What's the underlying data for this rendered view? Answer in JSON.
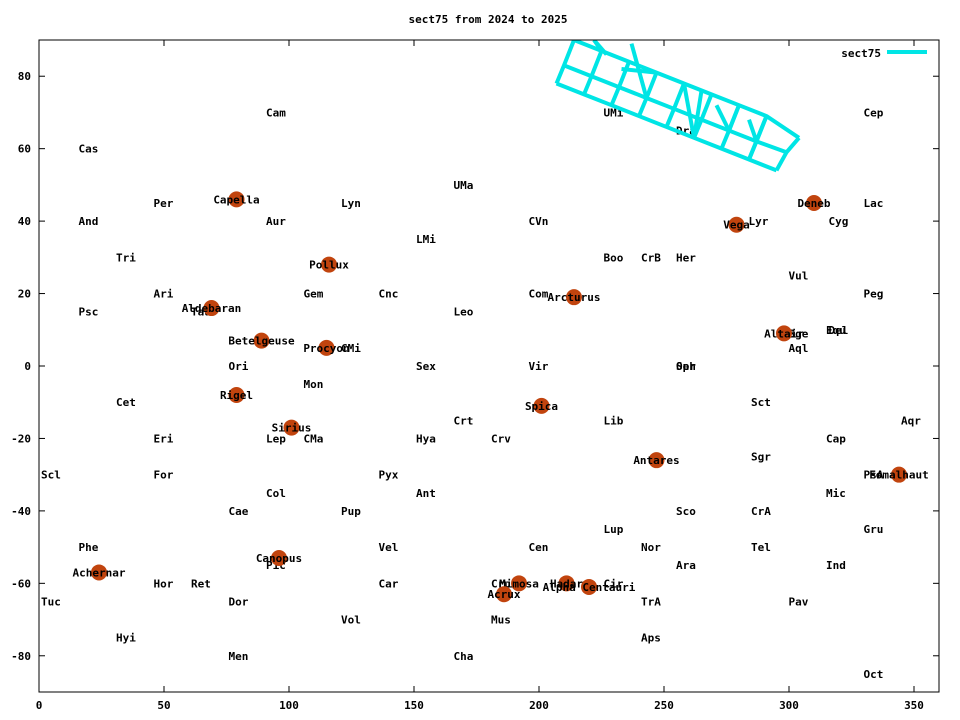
{
  "colors": {
    "series": "#00e5e5",
    "star": "#c1440e",
    "axis": "#000000",
    "background": "#ffffff"
  },
  "chart_data": {
    "type": "scatter",
    "title": "sect75 from 2024 to 2025",
    "xlabel": "",
    "ylabel": "",
    "xlim": [
      0,
      360
    ],
    "ylim": [
      -90,
      90
    ],
    "xticks": [
      0,
      50,
      100,
      150,
      200,
      250,
      300,
      350
    ],
    "yticks": [
      -80,
      -60,
      -40,
      -20,
      0,
      20,
      40,
      60,
      80
    ],
    "grid": false,
    "legend": {
      "position": "top-right",
      "entries": [
        "sect75"
      ]
    },
    "constellations": [
      {
        "name": "Cam",
        "x": 90,
        "y": 70
      },
      {
        "name": "Cas",
        "x": 15,
        "y": 60
      },
      {
        "name": "Cep",
        "x": 329,
        "y": 70
      },
      {
        "name": "UMa",
        "x": 165,
        "y": 50
      },
      {
        "name": "UMi",
        "x": 225,
        "y": 70
      },
      {
        "name": "Dra",
        "x": 254,
        "y": 65
      },
      {
        "name": "Per",
        "x": 45,
        "y": 45
      },
      {
        "name": "Lyn",
        "x": 120,
        "y": 45
      },
      {
        "name": "Lac",
        "x": 329,
        "y": 45
      },
      {
        "name": "And",
        "x": 15,
        "y": 40
      },
      {
        "name": "Aur",
        "x": 90,
        "y": 40
      },
      {
        "name": "CVn",
        "x": 195,
        "y": 40
      },
      {
        "name": "Lyr",
        "x": 283,
        "y": 40
      },
      {
        "name": "Cyg",
        "x": 315,
        "y": 40
      },
      {
        "name": "LMi",
        "x": 150,
        "y": 35
      },
      {
        "name": "Tri",
        "x": 30,
        "y": 30
      },
      {
        "name": "Boo",
        "x": 225,
        "y": 30
      },
      {
        "name": "CrB",
        "x": 240,
        "y": 30
      },
      {
        "name": "Her",
        "x": 254,
        "y": 30
      },
      {
        "name": "Vul",
        "x": 299,
        "y": 25
      },
      {
        "name": "Ari",
        "x": 45,
        "y": 20
      },
      {
        "name": "Gem",
        "x": 105,
        "y": 20
      },
      {
        "name": "Cnc",
        "x": 135,
        "y": 20
      },
      {
        "name": "Com",
        "x": 195,
        "y": 20
      },
      {
        "name": "Peg",
        "x": 329,
        "y": 20
      },
      {
        "name": "Psc",
        "x": 15,
        "y": 15
      },
      {
        "name": "Tau",
        "x": 60,
        "y": 15
      },
      {
        "name": "Leo",
        "x": 165,
        "y": 15
      },
      {
        "name": "Equ",
        "x": 314,
        "y": 10
      },
      {
        "name": "Del",
        "x": 315,
        "y": 10
      },
      {
        "name": "Sge",
        "x": 299,
        "y": 9
      },
      {
        "name": "Aql",
        "x": 299,
        "y": 5
      },
      {
        "name": "CMi",
        "x": 120,
        "y": 5
      },
      {
        "name": "Ori",
        "x": 75,
        "y": 0
      },
      {
        "name": "Sex",
        "x": 150,
        "y": 0
      },
      {
        "name": "Vir",
        "x": 195,
        "y": 0
      },
      {
        "name": "Oph",
        "x": 254,
        "y": 0
      },
      {
        "name": "Ser",
        "x": 254,
        "y": 0
      },
      {
        "name": "Mon",
        "x": 105,
        "y": -5
      },
      {
        "name": "Cet",
        "x": 30,
        "y": -10
      },
      {
        "name": "Sct",
        "x": 284,
        "y": -10
      },
      {
        "name": "Crt",
        "x": 165,
        "y": -15
      },
      {
        "name": "Lib",
        "x": 225,
        "y": -15
      },
      {
        "name": "Aqr",
        "x": 344,
        "y": -15
      },
      {
        "name": "Eri",
        "x": 45,
        "y": -20
      },
      {
        "name": "Lep",
        "x": 90,
        "y": -20
      },
      {
        "name": "CMa",
        "x": 105,
        "y": -20
      },
      {
        "name": "Hya",
        "x": 150,
        "y": -20
      },
      {
        "name": "Crv",
        "x": 180,
        "y": -20
      },
      {
        "name": "Cap",
        "x": 314,
        "y": -20
      },
      {
        "name": "Sgr",
        "x": 284,
        "y": -25
      },
      {
        "name": "Scl",
        "x": 0,
        "y": -30
      },
      {
        "name": "For",
        "x": 45,
        "y": -30
      },
      {
        "name": "Pyx",
        "x": 135,
        "y": -30
      },
      {
        "name": "PsA",
        "x": 329,
        "y": -30
      },
      {
        "name": "Col",
        "x": 90,
        "y": -35
      },
      {
        "name": "Ant",
        "x": 150,
        "y": -35
      },
      {
        "name": "Mic",
        "x": 314,
        "y": -35
      },
      {
        "name": "Cae",
        "x": 75,
        "y": -40
      },
      {
        "name": "Pup",
        "x": 120,
        "y": -40
      },
      {
        "name": "Sco",
        "x": 254,
        "y": -40
      },
      {
        "name": "CrA",
        "x": 284,
        "y": -40
      },
      {
        "name": "Gru",
        "x": 329,
        "y": -45
      },
      {
        "name": "Lup",
        "x": 225,
        "y": -45
      },
      {
        "name": "Phe",
        "x": 15,
        "y": -50
      },
      {
        "name": "Vel",
        "x": 135,
        "y": -50
      },
      {
        "name": "Cen",
        "x": 195,
        "y": -50
      },
      {
        "name": "Nor",
        "x": 240,
        "y": -50
      },
      {
        "name": "Tel",
        "x": 284,
        "y": -50
      },
      {
        "name": "Pic",
        "x": 90,
        "y": -55
      },
      {
        "name": "Ara",
        "x": 254,
        "y": -55
      },
      {
        "name": "Ind",
        "x": 314,
        "y": -55
      },
      {
        "name": "Hor",
        "x": 45,
        "y": -60
      },
      {
        "name": "Ret",
        "x": 60,
        "y": -60
      },
      {
        "name": "Car",
        "x": 135,
        "y": -60
      },
      {
        "name": "Cru",
        "x": 180,
        "y": -60
      },
      {
        "name": "Cir",
        "x": 225,
        "y": -60
      },
      {
        "name": "Tuc",
        "x": 0,
        "y": -65
      },
      {
        "name": "Dor",
        "x": 75,
        "y": -65
      },
      {
        "name": "TrA",
        "x": 240,
        "y": -65
      },
      {
        "name": "Pav",
        "x": 299,
        "y": -65
      },
      {
        "name": "Vol",
        "x": 120,
        "y": -70
      },
      {
        "name": "Mus",
        "x": 180,
        "y": -70
      },
      {
        "name": "Hyi",
        "x": 30,
        "y": -75
      },
      {
        "name": "Aps",
        "x": 240,
        "y": -75
      },
      {
        "name": "Men",
        "x": 75,
        "y": -80
      },
      {
        "name": "Cha",
        "x": 165,
        "y": -80
      },
      {
        "name": "Oct",
        "x": 329,
        "y": -85
      }
    ],
    "stars": [
      {
        "name": "Capella",
        "x": 79,
        "y": 46
      },
      {
        "name": "Deneb",
        "x": 310,
        "y": 45
      },
      {
        "name": "Vega",
        "x": 279,
        "y": 39
      },
      {
        "name": "Pollux",
        "x": 116,
        "y": 28
      },
      {
        "name": "Arcturus",
        "x": 214,
        "y": 19
      },
      {
        "name": "Aldebaran",
        "x": 69,
        "y": 16
      },
      {
        "name": "Altair",
        "x": 298,
        "y": 9
      },
      {
        "name": "Betelgeuse",
        "x": 89,
        "y": 7
      },
      {
        "name": "Procyon",
        "x": 115,
        "y": 5
      },
      {
        "name": "Rigel",
        "x": 79,
        "y": -8
      },
      {
        "name": "Spica",
        "x": 201,
        "y": -11
      },
      {
        "name": "Sirius",
        "x": 101,
        "y": -17
      },
      {
        "name": "Antares",
        "x": 247,
        "y": -26
      },
      {
        "name": "Fomalhaut",
        "x": 344,
        "y": -30
      },
      {
        "name": "Canopus",
        "x": 96,
        "y": -53
      },
      {
        "name": "Achernar",
        "x": 24,
        "y": -57
      },
      {
        "name": "Mimosa",
        "x": 192,
        "y": -60
      },
      {
        "name": "Hadar",
        "x": 211,
        "y": -60
      },
      {
        "name": "Alpha Centauri",
        "x": 220,
        "y": -61
      },
      {
        "name": "Acrux",
        "x": 186,
        "y": -63
      }
    ],
    "series": [
      {
        "name": "sect75",
        "grid_rows": [
          [
            [
              207,
              78
            ],
            [
              218,
              75
            ],
            [
              229,
              72
            ],
            [
              240,
              69
            ],
            [
              251,
              66
            ],
            [
              262,
              63
            ],
            [
              273,
              60
            ],
            [
              284,
              57
            ],
            [
              295,
              54
            ]
          ],
          [
            [
              210,
              83
            ],
            [
              221,
              80
            ],
            [
              232,
              77
            ],
            [
              243,
              74
            ],
            [
              254,
              71
            ],
            [
              265,
              68
            ],
            [
              276,
              65
            ],
            [
              287,
              62
            ],
            [
              299,
              59
            ]
          ],
          [
            [
              214,
              90
            ],
            [
              225,
              87
            ],
            [
              236,
              84
            ],
            [
              247,
              81
            ],
            [
              258,
              78
            ],
            [
              269,
              75
            ],
            [
              280,
              72
            ],
            [
              291,
              69
            ],
            [
              304,
              63
            ]
          ]
        ],
        "cross_segments": [
          [
            [
              222,
              90
            ],
            [
              227,
              86
            ]
          ],
          [
            [
              225,
              87
            ],
            [
              222,
              90
            ]
          ],
          [
            [
              237,
              89
            ],
            [
              243,
              74
            ]
          ],
          [
            [
              233,
              82
            ],
            [
              247,
              81
            ]
          ],
          [
            [
              258,
              78
            ],
            [
              262,
              63
            ]
          ],
          [
            [
              262,
              63
            ],
            [
              265,
              76
            ]
          ],
          [
            [
              271,
              72
            ],
            [
              276,
              65
            ]
          ],
          [
            [
              276,
              65
            ],
            [
              280,
              72
            ]
          ],
          [
            [
              284,
              57
            ],
            [
              291,
              69
            ]
          ],
          [
            [
              287,
              62
            ],
            [
              284,
              68
            ]
          ]
        ]
      }
    ]
  }
}
